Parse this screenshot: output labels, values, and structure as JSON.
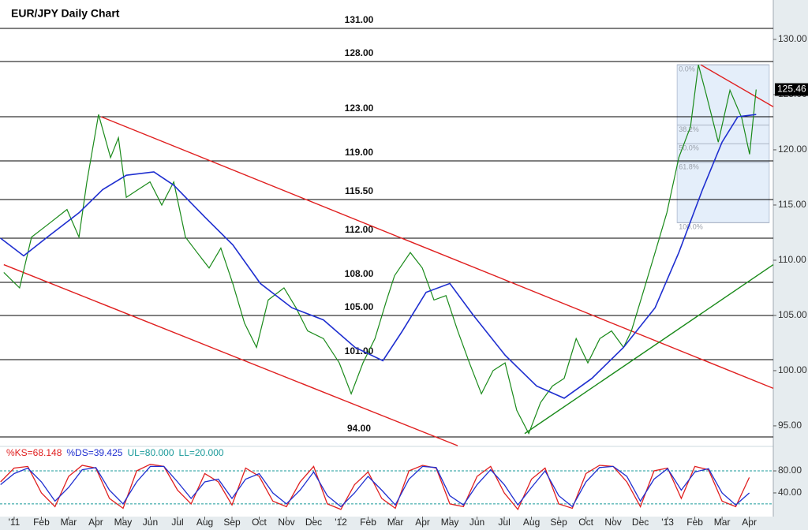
{
  "chart_data": [
    {
      "type": "line",
      "title": "EUR/JPY Daily Chart",
      "xlim": [
        -0.52,
        27.88
      ],
      "ylim": [
        93.21,
        133.57
      ],
      "yticks": [
        {
          "value": 95,
          "label": "95.00"
        },
        {
          "value": 100,
          "label": "100.00"
        },
        {
          "value": 105,
          "label": "105.00"
        },
        {
          "value": 110,
          "label": "110.00"
        },
        {
          "value": 115,
          "label": "115.00"
        },
        {
          "value": 120,
          "label": "120.00"
        },
        {
          "value": 125,
          "label": "125.00"
        },
        {
          "value": 130,
          "label": "130.00"
        }
      ],
      "series": [
        {
          "color": "#1a8a1a",
          "x": [
            -0.38,
            0.2,
            0.64,
            1.22,
            1.94,
            2.38,
            2.67,
            3.1,
            3.54,
            3.83,
            4.12,
            4.55,
            4.99,
            5.42,
            5.86,
            6.29,
            6.72,
            7.16,
            7.59,
            8.03,
            8.46,
            8.9,
            9.33,
            9.91,
            10.35,
            10.78,
            11.36,
            11.94,
            12.38,
            12.81,
            13.25,
            13.68,
            13.97,
            14.55,
            14.99,
            15.42,
            15.86,
            16.29,
            16.72,
            17.16,
            17.59,
            18.03,
            18.46,
            18.9,
            19.33,
            19.77,
            20.2,
            20.64,
            21.07,
            21.51,
            21.94,
            22.38,
            22.67,
            23.1,
            23.54,
            23.97,
            24.41,
            24.84,
            25.13,
            25.42,
            25.86,
            26.29,
            26.72,
            27.01,
            27.25
          ],
          "values": [
            108.9,
            107.5,
            112.1,
            113.2,
            114.6,
            112.1,
            117.1,
            123.2,
            119.3,
            121.1,
            115.7,
            116.4,
            117.1,
            115.0,
            117.1,
            112.1,
            110.7,
            109.3,
            111.1,
            107.9,
            104.3,
            102.1,
            106.4,
            107.5,
            105.7,
            103.6,
            102.9,
            100.7,
            97.9,
            100.7,
            102.9,
            106.4,
            108.6,
            110.7,
            109.3,
            106.4,
            106.8,
            103.6,
            100.7,
            97.9,
            100.0,
            100.7,
            96.4,
            94.3,
            97.1,
            98.6,
            99.3,
            102.9,
            100.7,
            102.9,
            103.6,
            102.1,
            103.6,
            107.1,
            110.7,
            114.3,
            119.3,
            122.1,
            127.7,
            125.0,
            120.7,
            125.4,
            122.9,
            119.6,
            125.46
          ]
        },
        {
          "color": "#1f2fd0",
          "x": [
            -0.5,
            0.35,
            1.22,
            2.38,
            3.25,
            4.12,
            5.13,
            5.86,
            7.01,
            8.03,
            9.04,
            10.2,
            11.36,
            12.52,
            13.54,
            14.26,
            15.13,
            16.0,
            16.87,
            18.03,
            19.19,
            20.2,
            21.22,
            22.38,
            23.54,
            24.41,
            25.28,
            26.0,
            26.58,
            27.25
          ],
          "values": [
            112.0,
            110.4,
            112.1,
            114.3,
            116.4,
            117.7,
            118.0,
            116.8,
            113.9,
            111.4,
            107.9,
            105.7,
            104.6,
            102.1,
            100.9,
            103.6,
            107.1,
            107.9,
            105.0,
            101.4,
            98.6,
            97.5,
            99.3,
            102.1,
            105.7,
            110.7,
            116.4,
            120.7,
            123.0,
            123.2
          ]
        }
      ],
      "levels": [
        {
          "value": 131,
          "label": "131.00"
        },
        {
          "value": 128,
          "label": "128.00"
        },
        {
          "value": 123,
          "label": "123.00"
        },
        {
          "value": 119,
          "label": "119.00"
        },
        {
          "value": 115.5,
          "label": "115.50"
        },
        {
          "value": 112,
          "label": "112.00"
        },
        {
          "value": 108,
          "label": "108.00"
        },
        {
          "value": 105,
          "label": "105.00"
        },
        {
          "value": 101,
          "label": "101.00"
        },
        {
          "value": 94,
          "label": "94.00"
        }
      ],
      "trendlines": [
        {
          "color": "#e02020",
          "points": [
            [
              3.19,
              123.0
            ],
            [
              27.88,
              98.4
            ]
          ]
        },
        {
          "color": "#e02020",
          "points": [
            [
              -0.38,
              109.6
            ],
            [
              16.29,
              93.2
            ]
          ]
        },
        {
          "color": "#e02020",
          "points": [
            [
              25.22,
              127.7
            ],
            [
              27.88,
              123.9
            ]
          ]
        },
        {
          "color": "#1a8a1a",
          "points": [
            [
              18.75,
              94.3
            ],
            [
              27.88,
              109.6
            ]
          ]
        }
      ],
      "fibonacci": {
        "x": [
          24.35,
          27.73
        ],
        "high": 127.7,
        "low": 113.4,
        "levels": [
          {
            "value": 0,
            "label": "0.0%"
          },
          {
            "value": 38.2,
            "label": "38.2%"
          },
          {
            "value": 50,
            "label": "50.0%"
          },
          {
            "value": 61.8,
            "label": "61.8%"
          },
          {
            "value": 100,
            "label": "100.0%"
          }
        ]
      },
      "last_price": 125.46
    },
    {
      "type": "line",
      "header": [
        {
          "text": "%KS=68.148",
          "color": "#e02020"
        },
        {
          "text": "%DS=39.425",
          "color": "#1f2fd0"
        },
        {
          "text": "UL=80.000",
          "color": "#1a9a9a"
        },
        {
          "text": "LL=20.000",
          "color": "#1a9a9a"
        }
      ],
      "xlim": [
        -0.52,
        27.88
      ],
      "ylim": [
        -3,
        123
      ],
      "yticks": [
        {
          "value": 40,
          "label": "40.00"
        },
        {
          "value": 80,
          "label": "80.00"
        }
      ],
      "bands": [
        20,
        80
      ],
      "xticks": [
        {
          "value": 0,
          "label": "'11"
        },
        {
          "value": 1,
          "label": "Feb"
        },
        {
          "value": 2,
          "label": "Mar"
        },
        {
          "value": 3,
          "label": "Apr"
        },
        {
          "value": 4,
          "label": "May"
        },
        {
          "value": 5,
          "label": "Jun"
        },
        {
          "value": 6,
          "label": "Jul"
        },
        {
          "value": 7,
          "label": "Aug"
        },
        {
          "value": 8,
          "label": "Sep"
        },
        {
          "value": 9,
          "label": "Oct"
        },
        {
          "value": 10,
          "label": "Nov"
        },
        {
          "value": 11,
          "label": "Dec"
        },
        {
          "value": 12,
          "label": "'12"
        },
        {
          "value": 13,
          "label": "Feb"
        },
        {
          "value": 14,
          "label": "Mar"
        },
        {
          "value": 15,
          "label": "Apr"
        },
        {
          "value": 16,
          "label": "May"
        },
        {
          "value": 17,
          "label": "Jun"
        },
        {
          "value": 18,
          "label": "Jul"
        },
        {
          "value": 19,
          "label": "Aug"
        },
        {
          "value": 20,
          "label": "Sep"
        },
        {
          "value": 21,
          "label": "Oct"
        },
        {
          "value": 22,
          "label": "Nov"
        },
        {
          "value": 23,
          "label": "Dec"
        },
        {
          "value": 24,
          "label": "'13"
        },
        {
          "value": 25,
          "label": "Feb"
        },
        {
          "value": 26,
          "label": "Mar"
        },
        {
          "value": 27,
          "label": "Apr"
        }
      ],
      "x": [
        -0.5,
        0,
        0.5,
        1,
        1.5,
        2,
        2.5,
        3,
        3.5,
        4,
        4.5,
        5,
        5.5,
        6,
        6.5,
        7,
        7.5,
        8,
        8.5,
        9,
        9.5,
        10,
        10.5,
        11,
        11.5,
        12,
        12.5,
        13,
        13.5,
        14,
        14.5,
        15,
        15.5,
        16,
        16.5,
        17,
        17.5,
        18,
        18.5,
        19,
        19.5,
        20,
        20.5,
        21,
        21.5,
        22,
        22.5,
        23,
        23.5,
        24,
        24.5,
        25,
        25.5,
        26,
        26.5,
        27
      ],
      "series": [
        {
          "color": "#e02020",
          "values": [
            60,
            85,
            88,
            40,
            15,
            70,
            90,
            85,
            30,
            12,
            80,
            92,
            88,
            45,
            20,
            75,
            60,
            18,
            85,
            70,
            25,
            15,
            60,
            88,
            20,
            10,
            55,
            78,
            30,
            12,
            80,
            90,
            85,
            20,
            15,
            70,
            88,
            40,
            10,
            65,
            85,
            20,
            12,
            75,
            90,
            88,
            60,
            15,
            80,
            85,
            30,
            88,
            82,
            25,
            15,
            68
          ]
        },
        {
          "color": "#1f2fd0",
          "values": [
            55,
            75,
            85,
            60,
            25,
            50,
            82,
            86,
            45,
            20,
            60,
            88,
            88,
            60,
            30,
            60,
            65,
            30,
            65,
            75,
            40,
            20,
            45,
            78,
            35,
            15,
            40,
            70,
            45,
            18,
            65,
            88,
            86,
            35,
            18,
            55,
            82,
            55,
            18,
            50,
            80,
            35,
            15,
            60,
            86,
            88,
            70,
            25,
            65,
            84,
            45,
            78,
            84,
            40,
            18,
            40
          ]
        }
      ]
    }
  ]
}
